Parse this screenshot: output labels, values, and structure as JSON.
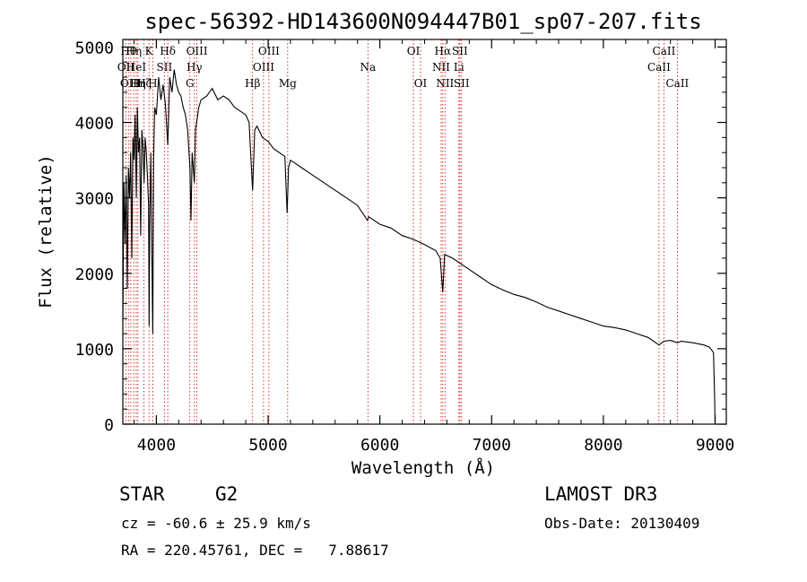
{
  "chart_data": {
    "type": "line",
    "title": "spec-56392-HD143600N094447B01_sp07-207.fits",
    "xlabel": "Wavelength (Å)",
    "ylabel": "Flux (relative)",
    "xlim": [
      3700,
      9100
    ],
    "ylim": [
      0,
      5100
    ],
    "xticks": [
      4000,
      5000,
      6000,
      7000,
      8000,
      9000
    ],
    "yticks": [
      0,
      1000,
      2000,
      3000,
      4000,
      5000
    ],
    "line_color": "#000000",
    "marker_color": "#cc0000",
    "series": [
      {
        "name": "flux",
        "x": [
          3700,
          3710,
          3720,
          3730,
          3740,
          3750,
          3760,
          3770,
          3780,
          3790,
          3800,
          3810,
          3820,
          3830,
          3840,
          3850,
          3860,
          3870,
          3880,
          3890,
          3900,
          3910,
          3920,
          3930,
          3935,
          3940,
          3950,
          3960,
          3968,
          3975,
          3985,
          4000,
          4020,
          4040,
          4060,
          4080,
          4102,
          4120,
          4140,
          4160,
          4180,
          4200,
          4220,
          4240,
          4260,
          4280,
          4300,
          4310,
          4320,
          4340,
          4350,
          4360,
          4380,
          4400,
          4450,
          4500,
          4550,
          4600,
          4650,
          4700,
          4750,
          4800,
          4830,
          4861,
          4880,
          4900,
          4950,
          5000,
          5050,
          5100,
          5150,
          5170,
          5183,
          5200,
          5250,
          5300,
          5400,
          5500,
          5600,
          5700,
          5800,
          5890,
          5900,
          6000,
          6100,
          6200,
          6300,
          6400,
          6500,
          6540,
          6563,
          6580,
          6650,
          6700,
          6800,
          6900,
          7000,
          7100,
          7200,
          7300,
          7400,
          7500,
          7600,
          7700,
          7800,
          7900,
          8000,
          8100,
          8200,
          8300,
          8400,
          8498,
          8542,
          8600,
          8662,
          8700,
          8800,
          8900,
          8950,
          8985,
          8995,
          9000
        ],
        "y": [
          1350,
          3200,
          2400,
          3300,
          1800,
          3400,
          3000,
          3600,
          2200,
          3800,
          3500,
          4100,
          3000,
          4200,
          3600,
          3800,
          2500,
          3900,
          3700,
          3200,
          3800,
          3600,
          3300,
          2900,
          1300,
          2600,
          3600,
          2200,
          1200,
          3500,
          4200,
          4100,
          4600,
          4300,
          4500,
          4250,
          3700,
          4600,
          4400,
          4700,
          4500,
          4400,
          4350,
          4200,
          4100,
          3900,
          3400,
          2700,
          3600,
          3200,
          3900,
          4000,
          4200,
          4300,
          4350,
          4450,
          4300,
          4350,
          4300,
          4200,
          4150,
          4100,
          4000,
          3100,
          3900,
          3950,
          3800,
          3750,
          3650,
          3600,
          3550,
          2800,
          3400,
          3500,
          3450,
          3400,
          3300,
          3200,
          3100,
          3000,
          2900,
          2700,
          2750,
          2650,
          2600,
          2500,
          2450,
          2380,
          2300,
          2200,
          1750,
          2250,
          2200,
          2150,
          2050,
          1950,
          1850,
          1780,
          1720,
          1680,
          1620,
          1550,
          1500,
          1450,
          1400,
          1350,
          1300,
          1280,
          1250,
          1200,
          1150,
          1050,
          1100,
          1110,
          1080,
          1100,
          1080,
          1050,
          1020,
          950,
          400,
          0
        ]
      }
    ],
    "line_markers": [
      {
        "wavelength": 3727,
        "label": "OII",
        "row": 2
      },
      {
        "wavelength": 3750,
        "label": "Hθ",
        "row": 1
      },
      {
        "wavelength": 3771,
        "label": "OIII",
        "row": 3
      },
      {
        "wavelength": 3798,
        "label": "Hη",
        "row": 1
      },
      {
        "wavelength": 3820,
        "label": "HeI",
        "row": 2
      },
      {
        "wavelength": 3835,
        "label": "Hη",
        "row": 3
      },
      {
        "wavelength": 3889,
        "label": "Hζ",
        "row": 3
      },
      {
        "wavelength": 3934,
        "label": "K",
        "row": 1
      },
      {
        "wavelength": 3968,
        "label": "H",
        "row": 3
      },
      {
        "wavelength": 4072,
        "label": "SII",
        "row": 2
      },
      {
        "wavelength": 4102,
        "label": "Hδ",
        "row": 1
      },
      {
        "wavelength": 4300,
        "label": "G",
        "row": 3
      },
      {
        "wavelength": 4340,
        "label": "Hγ",
        "row": 2
      },
      {
        "wavelength": 4363,
        "label": "OIII",
        "row": 1
      },
      {
        "wavelength": 4861,
        "label": "Hβ",
        "row": 3
      },
      {
        "wavelength": 4959,
        "label": "OIII",
        "row": 2
      },
      {
        "wavelength": 5007,
        "label": "OIII",
        "row": 1
      },
      {
        "wavelength": 5175,
        "label": "Mg",
        "row": 3
      },
      {
        "wavelength": 5893,
        "label": "Na",
        "row": 2
      },
      {
        "wavelength": 6300,
        "label": "OI",
        "row": 1
      },
      {
        "wavelength": 6364,
        "label": "OI",
        "row": 3
      },
      {
        "wavelength": 6548,
        "label": "NII",
        "row": 2
      },
      {
        "wavelength": 6563,
        "label": "Hα",
        "row": 1
      },
      {
        "wavelength": 6583,
        "label": "NII",
        "row": 3
      },
      {
        "wavelength": 6707,
        "label": "Li",
        "row": 2
      },
      {
        "wavelength": 6716,
        "label": "SII",
        "row": 1
      },
      {
        "wavelength": 6731,
        "label": "SII",
        "row": 3
      },
      {
        "wavelength": 8498,
        "label": "CaII",
        "row": 2
      },
      {
        "wavelength": 8542,
        "label": "CaII",
        "row": 1
      },
      {
        "wavelength": 8662,
        "label": "CaII",
        "row": 3
      }
    ]
  },
  "info": {
    "object_type": "STAR",
    "subclass": "G2",
    "survey": "LAMOST DR3",
    "cz": "cz = -60.6 ± 25.9 km/s",
    "obs_date": "Obs-Date: 20130409",
    "coords": "RA = 220.45761, DEC =   7.88617"
  }
}
